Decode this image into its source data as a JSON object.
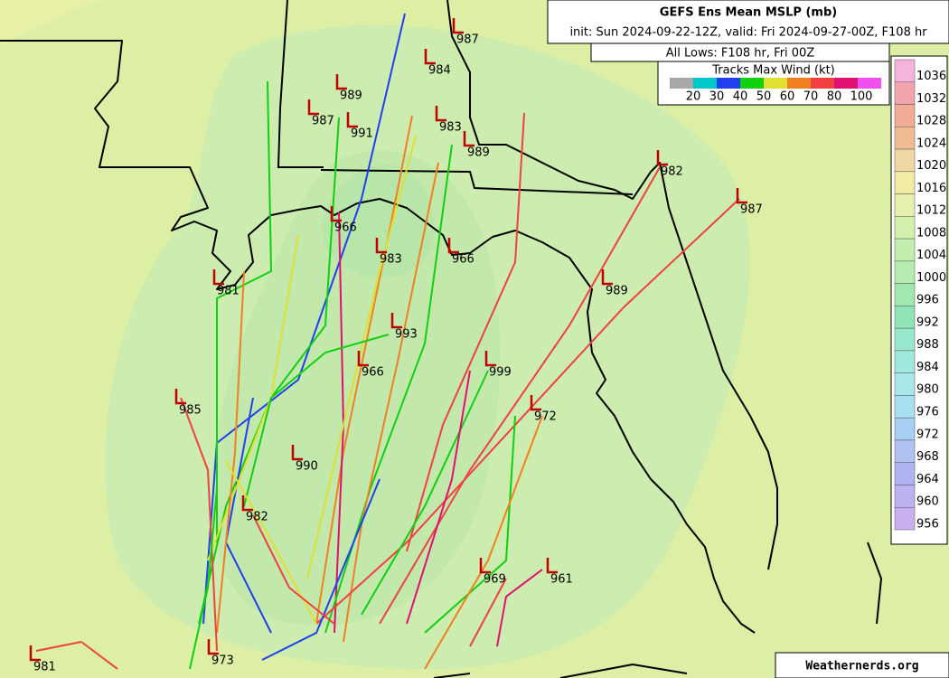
{
  "header": {
    "title": "GEFS Ens Mean MSLP (mb)",
    "subtitle": "init: Sun 2024-09-22-12Z, valid: Fri 2024-09-27-00Z, F108 hr",
    "lows_caption": "All Lows: F108 hr, Fri 00Z"
  },
  "tracks_legend": {
    "title": "Tracks Max Wind (kt)",
    "colors": [
      "#a8a8a8",
      "#00c8c8",
      "#2040f0",
      "#10d010",
      "#e0e030",
      "#f08020",
      "#f04040",
      "#e01070",
      "#f050f0"
    ],
    "labels": [
      20,
      30,
      40,
      50,
      60,
      70,
      80,
      100
    ]
  },
  "colorbar": {
    "labels": [
      1036,
      1032,
      1028,
      1024,
      1020,
      1016,
      1012,
      1008,
      1004,
      1000,
      996,
      992,
      988,
      984,
      980,
      976,
      972,
      968,
      964,
      960,
      956
    ],
    "colors": [
      "#f6b4dc",
      "#f2a4ac",
      "#f0ac94",
      "#f0bc94",
      "#f0d8a4",
      "#f0eca4",
      "#e4f0ac",
      "#d4f0ac",
      "#c4eeb0",
      "#b4ecb0",
      "#a0e8b0",
      "#90e4b8",
      "#98e8cc",
      "#a0e8dc",
      "#a8e8ea",
      "#a8e0f2",
      "#a8d0f2",
      "#b0c2f2",
      "#b0b4f2",
      "#bcb2f2",
      "#c8b0f0"
    ]
  },
  "lows": [
    987,
    984,
    989,
    987,
    991,
    983,
    989,
    982,
    987,
    966,
    983,
    966,
    981,
    989,
    993,
    966,
    999,
    985,
    972,
    990,
    982,
    969,
    961,
    973,
    981
  ],
  "watermark": "Weathernerds.org"
}
